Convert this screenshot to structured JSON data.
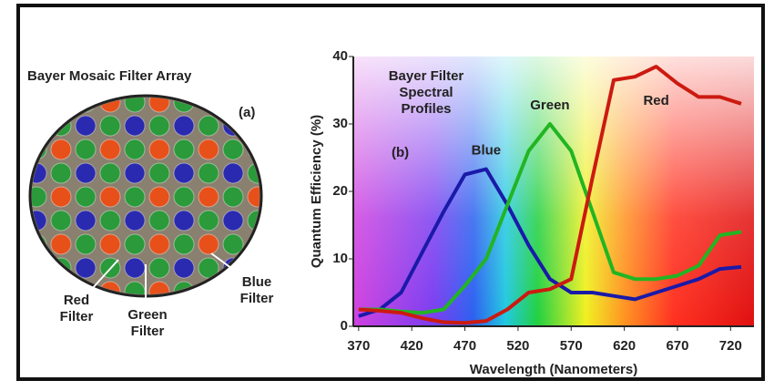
{
  "chart_data": {
    "type": "line",
    "annotation": [
      "Bayer Filter",
      "Spectral",
      "Profiles"
    ],
    "panel_label": "(b)",
    "x_label": "Wavelength (Nanometers)",
    "y_label": "Quantum Efficiency (%)",
    "x": [
      370,
      390,
      410,
      430,
      450,
      470,
      490,
      510,
      530,
      550,
      570,
      590,
      610,
      630,
      650,
      670,
      690,
      710,
      730
    ],
    "series": [
      {
        "name": "Blue",
        "color": "#1a1aa8",
        "values": [
          1.5,
          2.5,
          5,
          11,
          17,
          22.5,
          23.3,
          18,
          12,
          7,
          5,
          5,
          4.5,
          4,
          5,
          6,
          7,
          8.5,
          8.8
        ]
      },
      {
        "name": "Green",
        "color": "#22b522",
        "values": [
          2.5,
          2.5,
          2.2,
          2,
          2.5,
          6,
          10,
          18,
          26,
          30,
          26,
          17,
          8,
          7,
          7,
          7.5,
          9,
          13.5,
          14
        ]
      },
      {
        "name": "Red",
        "color": "#cc1a10",
        "values": [
          2.5,
          2.3,
          2,
          1.2,
          0.6,
          0.5,
          0.8,
          2.5,
          5,
          5.5,
          7,
          22,
          36.5,
          37,
          38.5,
          36,
          34,
          34,
          33
        ]
      }
    ],
    "xlim": [
      365,
      742
    ],
    "ylim": [
      0,
      40
    ],
    "xticks": [
      370,
      420,
      470,
      520,
      570,
      620,
      670,
      720
    ],
    "yticks": [
      0,
      10,
      20,
      30,
      40
    ]
  },
  "mosaic": {
    "title": "Bayer Mosaic Filter Array",
    "panel_label": "(a)",
    "labels": {
      "red": [
        "Red",
        "Filter"
      ],
      "green": [
        "Green",
        "Filter"
      ],
      "blue": [
        "Blue",
        "Filter"
      ]
    }
  }
}
